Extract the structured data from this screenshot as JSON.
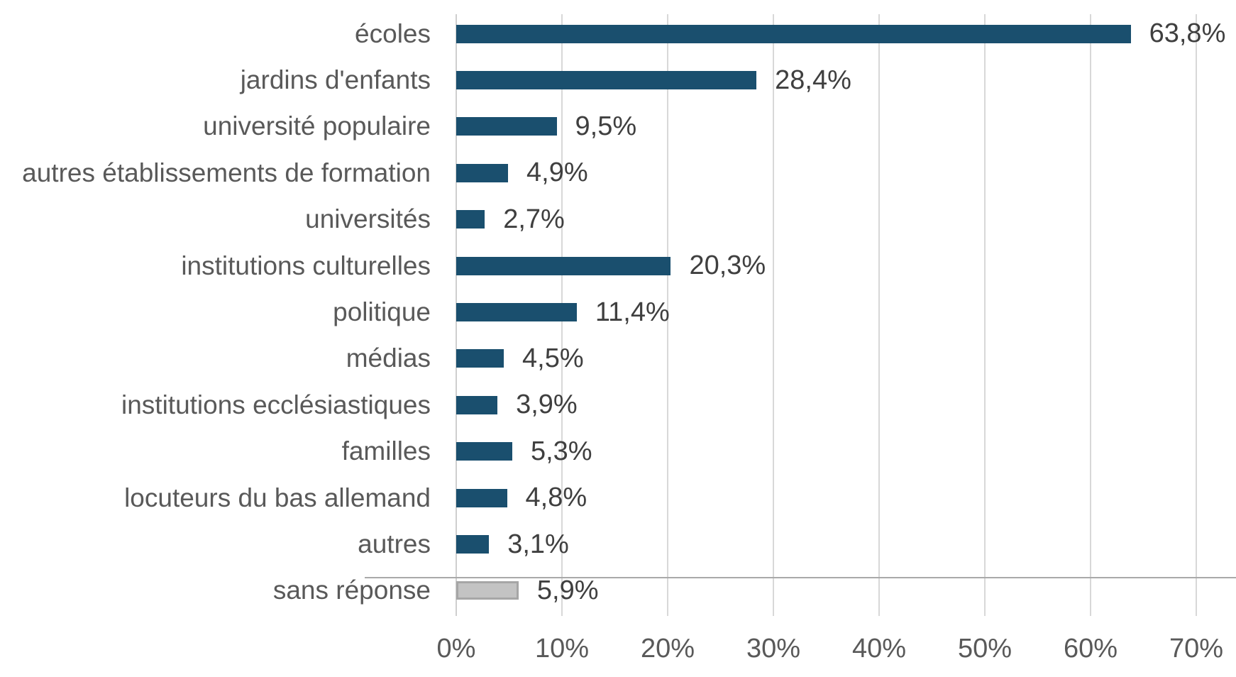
{
  "chart_data": {
    "type": "bar",
    "orientation": "horizontal",
    "title": "",
    "xlabel": "",
    "ylabel": "",
    "xlim": [
      0,
      70
    ],
    "x_ticks": [
      "0%",
      "10%",
      "20%",
      "30%",
      "40%",
      "50%",
      "60%",
      "70%"
    ],
    "grid": "vertical gridlines every 10%",
    "legend": "none",
    "bar_color": "#1a4f6e",
    "no_answer_bar_fill": "#c3c3c3",
    "no_answer_bar_border": "#a6a6a6",
    "gridline_color": "#d8d8d8",
    "separator_line_color": "#a9a9a9",
    "label_color": "#595959",
    "value_label_color": "#3f3f3f",
    "value_label_format": "decimal comma, percent",
    "categories": [
      "écoles",
      "jardins d'enfants",
      "université populaire",
      "autres établissements de formation",
      "universités",
      "institutions culturelles",
      "politique",
      "médias",
      "institutions ecclésiastiques",
      "familles",
      "locuteurs du bas allemand",
      "autres",
      "sans réponse"
    ],
    "values": [
      63.8,
      28.4,
      9.5,
      4.9,
      2.7,
      20.3,
      11.4,
      4.5,
      3.9,
      5.3,
      4.8,
      3.1,
      5.9
    ],
    "bars": [
      {
        "label": "écoles",
        "value": 63.8,
        "display": "63,8%",
        "variant": "default"
      },
      {
        "label": "jardins d'enfants",
        "value": 28.4,
        "display": "28,4%",
        "variant": "default"
      },
      {
        "label": "université populaire",
        "value": 9.5,
        "display": "9,5%",
        "variant": "default"
      },
      {
        "label": "autres établissements de formation",
        "value": 4.9,
        "display": "4,9%",
        "variant": "default"
      },
      {
        "label": "universités",
        "value": 2.7,
        "display": "2,7%",
        "variant": "default"
      },
      {
        "label": "institutions culturelles",
        "value": 20.3,
        "display": "20,3%",
        "variant": "default"
      },
      {
        "label": "politique",
        "value": 11.4,
        "display": "11,4%",
        "variant": "default"
      },
      {
        "label": "médias",
        "value": 4.5,
        "display": "4,5%",
        "variant": "default"
      },
      {
        "label": "institutions ecclésiastiques",
        "value": 3.9,
        "display": "3,9%",
        "variant": "default"
      },
      {
        "label": "familles",
        "value": 5.3,
        "display": "5,3%",
        "variant": "default"
      },
      {
        "label": "locuteurs du bas allemand",
        "value": 4.8,
        "display": "4,8%",
        "variant": "default"
      },
      {
        "label": "autres",
        "value": 3.1,
        "display": "3,1%",
        "variant": "default"
      },
      {
        "label": "sans réponse",
        "value": 5.9,
        "display": "5,9%",
        "variant": "no_answer"
      }
    ]
  }
}
